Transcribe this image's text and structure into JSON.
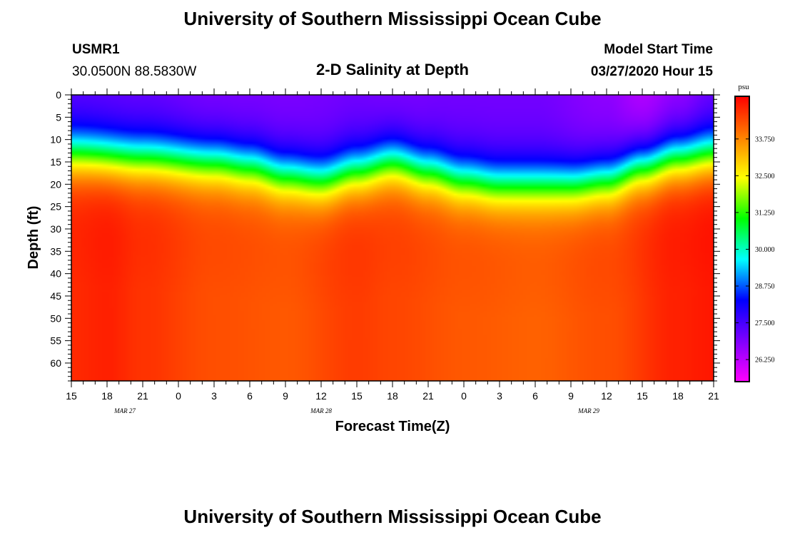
{
  "header": {
    "title": "University of Southern Mississippi Ocean Cube",
    "station": "USMR1",
    "coords": "30.0500N 88.5830W",
    "plot_title": "2-D Salinity at Depth",
    "model_label": "Model Start Time",
    "model_time": "03/27/2020 Hour 15"
  },
  "footer": {
    "title": "University of Southern Mississippi Ocean Cube"
  },
  "chart_data": {
    "type": "heatmap",
    "title": "2-D Salinity at Depth",
    "xlabel": "Forecast Time(Z)",
    "ylabel": "Depth (ft)",
    "x_range": [
      0,
      54
    ],
    "y_range": [
      0,
      64
    ],
    "y_inverted": true,
    "x_ticks": [
      {
        "pos": 0,
        "label": "15"
      },
      {
        "pos": 3,
        "label": "18"
      },
      {
        "pos": 6,
        "label": "21"
      },
      {
        "pos": 9,
        "label": "0"
      },
      {
        "pos": 12,
        "label": "3"
      },
      {
        "pos": 15,
        "label": "6"
      },
      {
        "pos": 18,
        "label": "9"
      },
      {
        "pos": 21,
        "label": "12"
      },
      {
        "pos": 24,
        "label": "15"
      },
      {
        "pos": 27,
        "label": "18"
      },
      {
        "pos": 30,
        "label": "21"
      },
      {
        "pos": 33,
        "label": "0"
      },
      {
        "pos": 36,
        "label": "3"
      },
      {
        "pos": 39,
        "label": "6"
      },
      {
        "pos": 42,
        "label": "9"
      },
      {
        "pos": 45,
        "label": "12"
      },
      {
        "pos": 48,
        "label": "15"
      },
      {
        "pos": 51,
        "label": "18"
      },
      {
        "pos": 54,
        "label": "21"
      }
    ],
    "date_labels": [
      {
        "pos": 4.5,
        "label": "MAR 27"
      },
      {
        "pos": 21,
        "label": "MAR 28"
      },
      {
        "pos": 43.5,
        "label": "MAR 29"
      }
    ],
    "y_ticks": [
      0,
      5,
      10,
      15,
      20,
      25,
      30,
      35,
      40,
      45,
      50,
      55,
      60
    ],
    "colorbar": {
      "unit": "psu",
      "range": [
        25.5,
        35.2
      ],
      "ticks": [
        {
          "value": 26.25,
          "label": "26.250"
        },
        {
          "value": 27.5,
          "label": "27.500"
        },
        {
          "value": 28.75,
          "label": "28.750"
        },
        {
          "value": 30.0,
          "label": "30.000"
        },
        {
          "value": 31.25,
          "label": "31.250"
        },
        {
          "value": 32.5,
          "label": "32.500"
        },
        {
          "value": 33.75,
          "label": "33.750"
        }
      ],
      "stops": [
        "#ff00ff",
        "#7f00ff",
        "#0000ff",
        "#00ffff",
        "#00ff00",
        "#ffff00",
        "#ff8000",
        "#ff0000"
      ]
    },
    "surface_salinity_by_hour": [
      [
        0,
        27.2
      ],
      [
        6,
        27.1
      ],
      [
        12,
        26.9
      ],
      [
        18,
        26.9
      ],
      [
        24,
        27.0
      ],
      [
        27,
        26.9
      ],
      [
        33,
        27.0
      ],
      [
        39,
        27.0
      ],
      [
        45,
        26.7
      ],
      [
        48,
        26.3
      ],
      [
        51,
        26.6
      ],
      [
        54,
        27.0
      ]
    ],
    "halocline_depth_ft_by_hour": [
      [
        0,
        13
      ],
      [
        6,
        14
      ],
      [
        12,
        15
      ],
      [
        15,
        16
      ],
      [
        18,
        18
      ],
      [
        21,
        19
      ],
      [
        24,
        17
      ],
      [
        27,
        15
      ],
      [
        30,
        17
      ],
      [
        33,
        19
      ],
      [
        36,
        20
      ],
      [
        39,
        20
      ],
      [
        42,
        20
      ],
      [
        45,
        19
      ],
      [
        48,
        16
      ],
      [
        51,
        14
      ],
      [
        54,
        13
      ]
    ],
    "deep_salinity_by_hour": [
      [
        0,
        34.9
      ],
      [
        3,
        35.0
      ],
      [
        6,
        34.8
      ],
      [
        12,
        34.5
      ],
      [
        18,
        34.4
      ],
      [
        24,
        34.7
      ],
      [
        27,
        34.6
      ],
      [
        33,
        34.4
      ],
      [
        39,
        34.3
      ],
      [
        45,
        34.5
      ],
      [
        51,
        35.0
      ],
      [
        54,
        35.1
      ]
    ],
    "halocline_width_ft": 3.5
  }
}
